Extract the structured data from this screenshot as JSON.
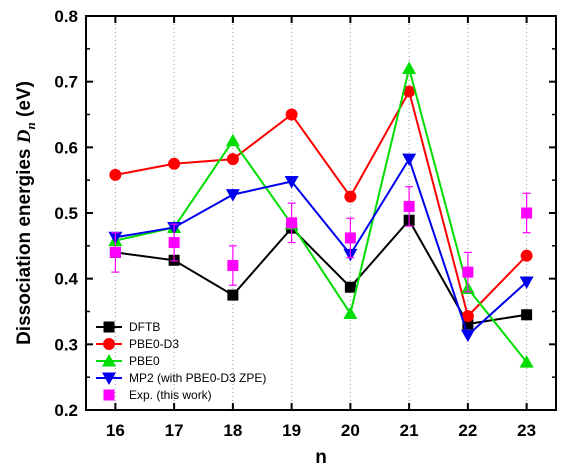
{
  "chart_data": {
    "type": "line",
    "title": "",
    "xlabel": "n",
    "ylabel_main": "Dissociation energies ",
    "ylabel_symbol": "D",
    "ylabel_subscript": "n",
    "ylabel_unit": " (eV)",
    "x": [
      16,
      17,
      18,
      19,
      20,
      21,
      22,
      23
    ],
    "x_tick_labels": [
      "16",
      "17",
      "18",
      "19",
      "20",
      "21",
      "22",
      "23"
    ],
    "xlim": [
      15.5,
      23.5
    ],
    "ylim": [
      0.2,
      0.8
    ],
    "y_ticks": [
      0.2,
      0.3,
      0.4,
      0.5,
      0.6,
      0.7,
      0.8
    ],
    "y_tick_labels": [
      "0.2",
      "0.3",
      "0.4",
      "0.5",
      "0.6",
      "0.7",
      "0.8"
    ],
    "grid": "vertical dotted lines at each x",
    "legend_position": "bottom-left",
    "series": [
      {
        "name": "DFTB",
        "color": "#000000",
        "marker": "square",
        "line": true,
        "values": [
          0.44,
          0.428,
          0.375,
          0.477,
          0.387,
          0.489,
          0.331,
          0.345
        ]
      },
      {
        "name": "PBE0-D3",
        "color": "#ff0000",
        "marker": "circle",
        "line": true,
        "values": [
          0.558,
          0.575,
          0.582,
          0.65,
          0.525,
          0.685,
          0.343,
          0.435
        ]
      },
      {
        "name": "PBE0",
        "color": "#00dd00",
        "marker": "triangle-up",
        "line": true,
        "values": [
          0.458,
          0.478,
          0.61,
          0.483,
          0.347,
          0.72,
          0.385,
          0.273
        ]
      },
      {
        "name": "MP2 (with PBE0-D3 ZPE)",
        "color": "#0000ee",
        "marker": "triangle-down",
        "line": true,
        "values": [
          0.463,
          0.478,
          0.528,
          0.548,
          0.437,
          0.582,
          0.314,
          0.395
        ]
      },
      {
        "name": "Exp. (this work)",
        "color": "#ff00ff",
        "marker": "square",
        "line": false,
        "values": [
          0.44,
          0.455,
          0.42,
          0.485,
          0.462,
          0.51,
          0.41,
          0.5
        ],
        "errors": [
          0.03,
          0.028,
          0.03,
          0.03,
          0.03,
          0.03,
          0.03,
          0.03
        ]
      }
    ]
  }
}
